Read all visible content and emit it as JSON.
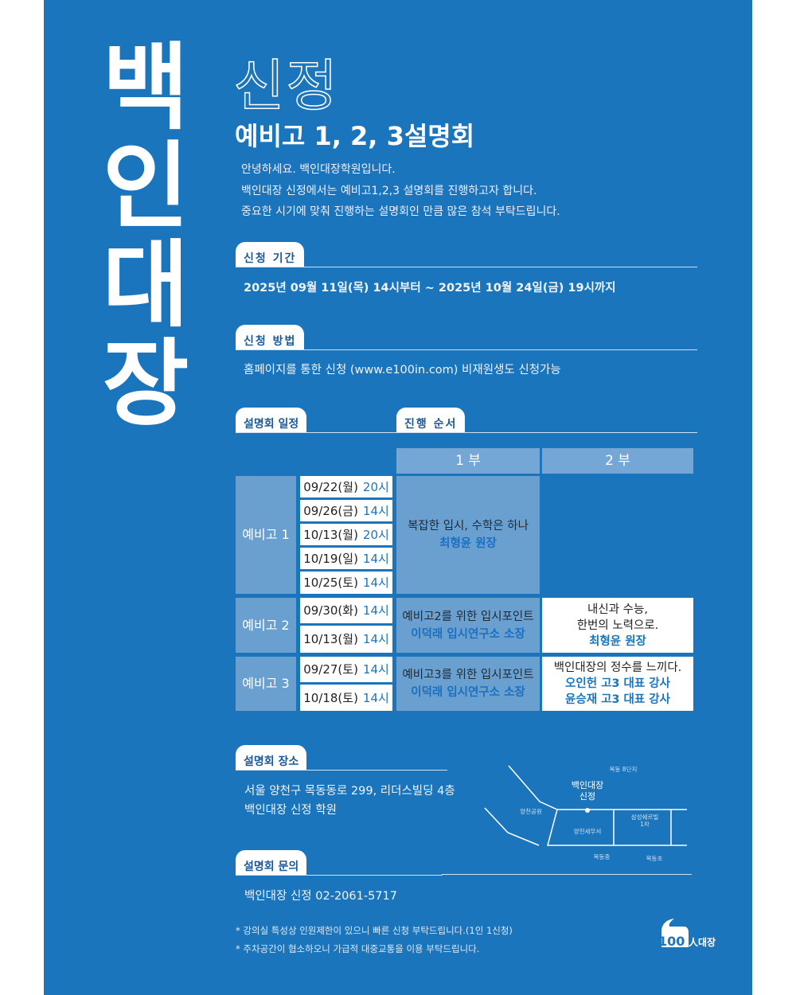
{
  "brand_title": [
    "백",
    "인",
    "대",
    "장"
  ],
  "branch": "신정",
  "subtitle": "예비고 1, 2, 3설명회",
  "intro": [
    "안녕하세요. 백인대장학원입니다.",
    "백인대장 신정에서는 예비고1,2,3 설명회를 진행하고자 합니다.",
    "중요한 시기에 맞춰 진행하는 설명회인 만큼 많은 참석 부탁드립니다."
  ],
  "period": {
    "label": "신청 기간",
    "text": "2025년 09월 11일(목) 14시부터 ~ 2025년 10월 24일(금) 19시까지"
  },
  "method": {
    "label": "신청 방법",
    "text": "홈페이지를 통한 신청 (www.e100in.com) 비재원생도 신청가능"
  },
  "schedule": {
    "label": "설명회 일정",
    "order_label": "진행 순서",
    "headers": [
      "1 부",
      "2 부"
    ],
    "groups": [
      {
        "name": "예비고 1",
        "dates": [
          [
            "09/22(월)",
            "20시"
          ],
          [
            "09/26(금)",
            "14시"
          ],
          [
            "10/13(월)",
            "20시"
          ],
          [
            "10/19(일)",
            "14시"
          ],
          [
            "10/25(토)",
            "14시"
          ]
        ],
        "part1": {
          "text": "복잡한 입시, 수학은 하나",
          "speaker": "최형윤 원장"
        },
        "part2": null
      },
      {
        "name": "예비고 2",
        "dates": [
          [
            "09/30(화)",
            "14시"
          ],
          [
            "10/13(월)",
            "14시"
          ]
        ],
        "part1": {
          "text": "예비고2를 위한 입시포인트",
          "speaker": "이덕래 입시연구소 소장"
        },
        "part2": {
          "lines": [
            "내신과 수능,",
            "한번의 노력으로."
          ],
          "speakers": [
            "최형윤 원장"
          ]
        }
      },
      {
        "name": "예비고 3",
        "dates": [
          [
            "09/27(토)",
            "14시"
          ],
          [
            "10/18(토)",
            "14시"
          ]
        ],
        "part1": {
          "text": "예비고3를 위한 입시포인트",
          "speaker": "이덕래 입시연구소 소장"
        },
        "part2": {
          "lines": [
            "백인대장의 정수를 느끼다."
          ],
          "speakers": [
            "오인헌 고3 대표 강사",
            "윤승재 고3 대표 강사"
          ]
        }
      }
    ]
  },
  "location": {
    "label": "설명회 장소",
    "lines": [
      "서울 양천구 목동동로 299, 리더스빌딩 4층",
      "백인대장 신정 학원"
    ]
  },
  "map": {
    "labels": {
      "top": "목동 8단지",
      "academy": [
        "백인대장",
        "신정"
      ],
      "park": "양천공원",
      "tax": "양천세무서",
      "samsung": [
        "삼성쉐르빌",
        "1차"
      ],
      "mid": "목동중",
      "elem": "목동초"
    }
  },
  "contact": {
    "label": "설명회 문의",
    "text": "백인대장 신정 02-2061-5717"
  },
  "notes": [
    "* 강의실 특성상 인원제한이 있으니 빠른 신청 부탁드립니다.(1인 1신청)",
    "* 주차공간이 협소하오니 가급적 대중교통을 이용 부탁드립니다."
  ],
  "logo": {
    "text": "100人대장"
  },
  "colors": {
    "background": "#1b75bc",
    "cell": "#6aa0cf",
    "accent": "#1b75bc"
  }
}
